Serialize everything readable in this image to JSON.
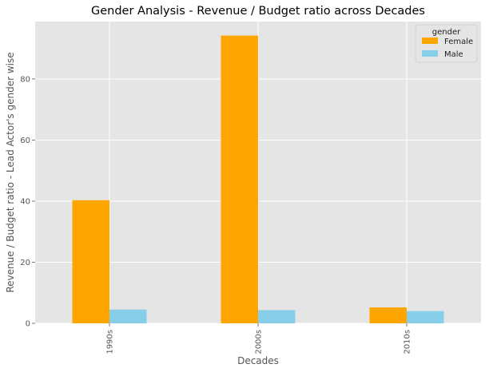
{
  "chart_data": {
    "type": "bar",
    "title": "Gender Analysis - Revenue / Budget ratio across Decades",
    "xlabel": "Decades",
    "ylabel": "Revenue / Budget ratio - Lead Actor's gender wise",
    "categories": [
      "1990s",
      "2000s",
      "2010s"
    ],
    "series": [
      {
        "name": "Female",
        "color": "#FFA500",
        "values": [
          40.3,
          94.2,
          5.2
        ]
      },
      {
        "name": "Male",
        "color": "#87CEEB",
        "values": [
          4.5,
          4.3,
          4.0
        ]
      }
    ],
    "ylim": [
      0,
      98.8
    ],
    "yticks": [
      0,
      20,
      40,
      60,
      80
    ],
    "grid": true,
    "legend": {
      "title": "gender",
      "position": "top-right"
    }
  }
}
